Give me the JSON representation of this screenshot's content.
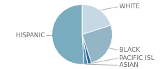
{
  "chart_data": {
    "type": "pie",
    "categories": [
      "WHITE",
      "BLACK",
      "PACIFIC ISL",
      "ASIAN",
      "HISPANIC"
    ],
    "values": [
      20,
      25,
      2,
      2,
      51
    ],
    "colors": [
      "#c5d8e4",
      "#93b5c6",
      "#2e6a9e",
      "#5590b0",
      "#7aacbf"
    ]
  }
}
